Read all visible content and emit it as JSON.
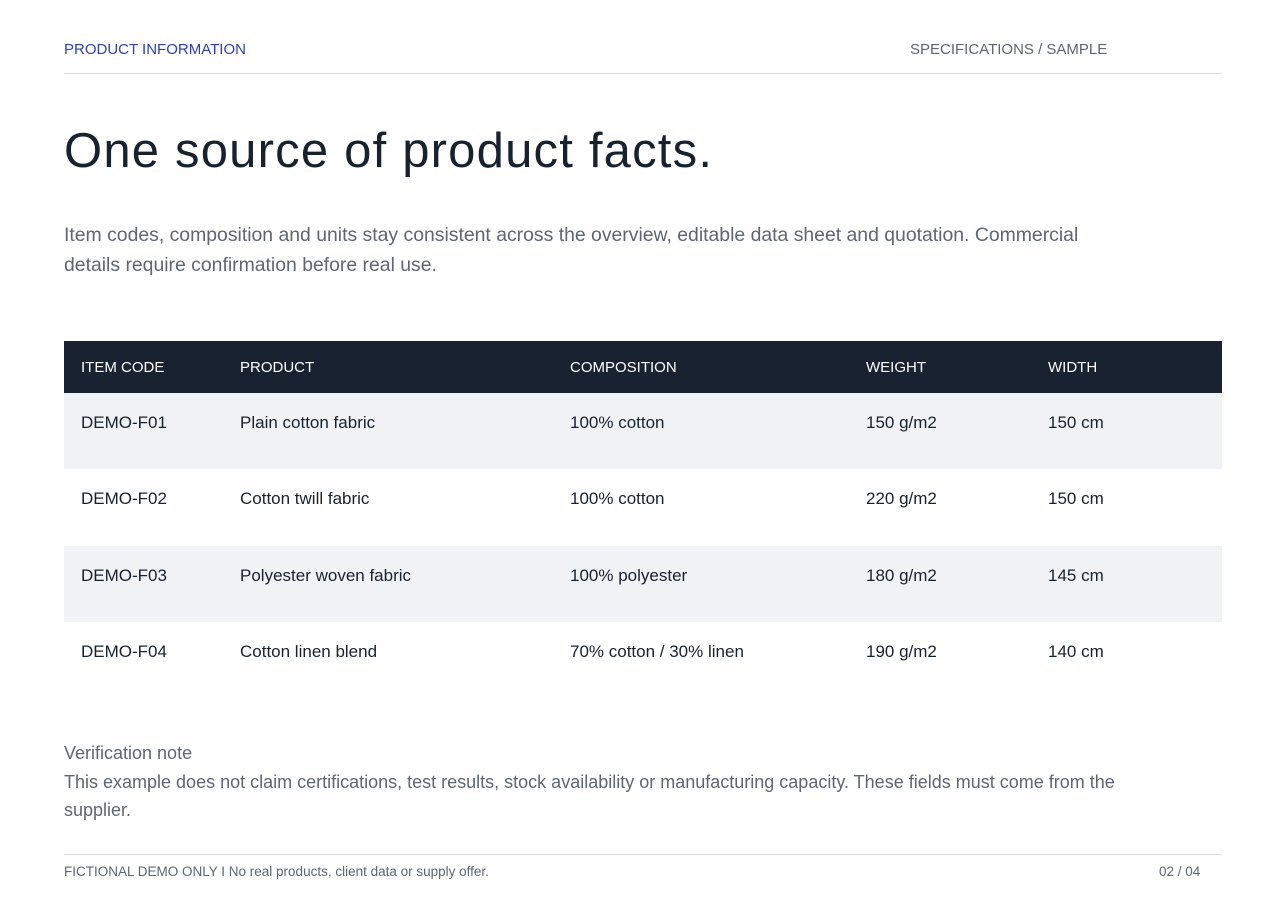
{
  "header": {
    "section_label": "PRODUCT INFORMATION",
    "spec_label": "SPECIFICATIONS / SAMPLE"
  },
  "title": "One source of product facts.",
  "intro": "Item codes, composition and units stay consistent across the overview, editable data sheet and quotation. Commercial details require confirmation before real use.",
  "table": {
    "columns": [
      "ITEM CODE",
      "PRODUCT",
      "COMPOSITION",
      "WEIGHT",
      "WIDTH"
    ],
    "rows": [
      [
        "DEMO-F01",
        "Plain cotton fabric",
        "100% cotton",
        "150 g/m2",
        "150 cm"
      ],
      [
        "DEMO-F02",
        "Cotton twill fabric",
        "100% cotton",
        "220 g/m2",
        "150 cm"
      ],
      [
        "DEMO-F03",
        "Polyester woven fabric",
        "100% polyester",
        "180 g/m2",
        "145 cm"
      ],
      [
        "DEMO-F04",
        "Cotton linen blend",
        "70% cotton / 30% linen",
        "190 g/m2",
        "140 cm"
      ]
    ]
  },
  "note": {
    "title": "Verification note",
    "body": "This example does not claim certifications, test results, stock availability or manufacturing capacity. These fields must come from the supplier."
  },
  "footer": {
    "disclaimer": "FICTIONAL DEMO ONLY I No real products, client data or supply offer.",
    "page": "02 / 04"
  },
  "colors": {
    "accent": "#2b3fbf",
    "table_header_bg": "#182231",
    "stripe_bg": "#f0f2f6",
    "muted_text": "#5f6672",
    "title_text": "#18222f"
  }
}
